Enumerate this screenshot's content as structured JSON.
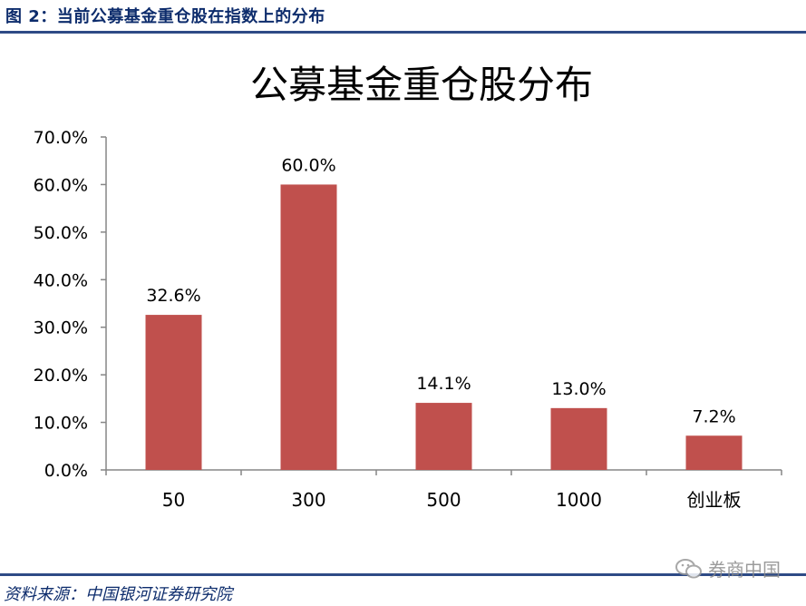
{
  "figure_caption": "图 2：当前公募基金重仓股在指数上的分布",
  "source_note": "资料来源：中国银河证券研究院",
  "watermark": {
    "text": "券商中国",
    "icon": "wechat-icon"
  },
  "colors": {
    "bar": "#C0504D",
    "rule": "#2E4B86",
    "caption": "#0D2C6C"
  },
  "chart_data": {
    "type": "bar",
    "title": "公募基金重仓股分布",
    "categories": [
      "50",
      "300",
      "500",
      "1000",
      "创业板"
    ],
    "values": [
      32.6,
      60.0,
      14.1,
      13.0,
      7.2
    ],
    "data_labels": [
      "32.6%",
      "60.0%",
      "14.1%",
      "13.0%",
      "7.2%"
    ],
    "ylim": [
      0,
      70
    ],
    "yticks": [
      0,
      10,
      20,
      30,
      40,
      50,
      60,
      70
    ],
    "ytick_labels": [
      "0.0%",
      "10.0%",
      "20.0%",
      "30.0%",
      "40.0%",
      "50.0%",
      "60.0%",
      "70.0%"
    ],
    "xlabel": "",
    "ylabel": "",
    "grid": false,
    "legend": false
  }
}
